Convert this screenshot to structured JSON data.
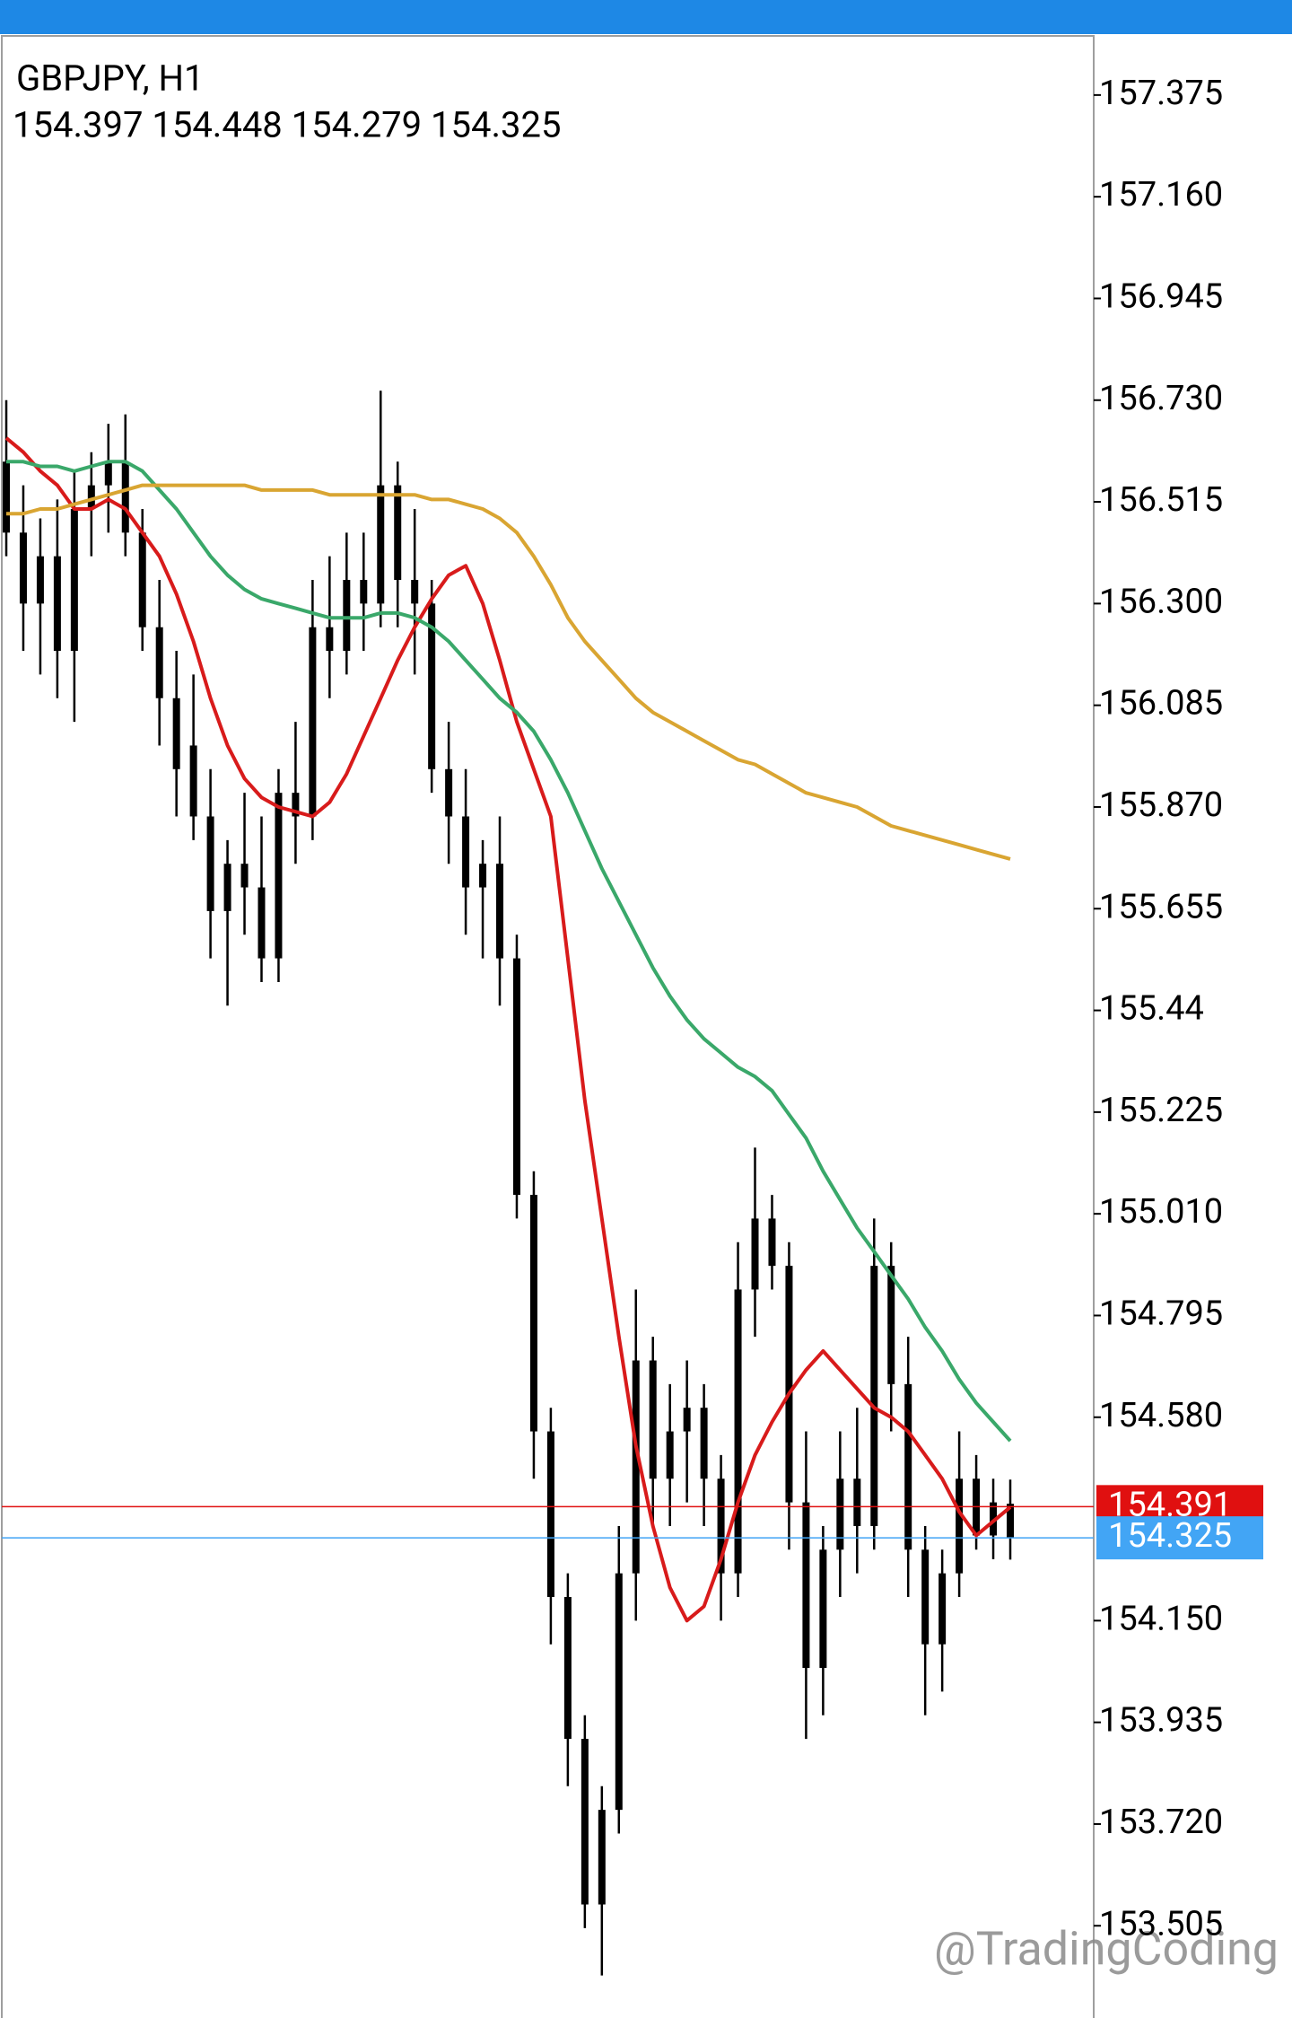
{
  "chart_data": {
    "type": "candlestick",
    "title": "GBPJPY, H1",
    "subtitle": "154.397 154.448 154.279 154.325",
    "watermark": "@TradingCoding",
    "candle_color": "#000000",
    "open": [
      156.6,
      156.45,
      156.3,
      156.4,
      156.2,
      156.5,
      156.55,
      156.6,
      156.45,
      156.25,
      156.1,
      156.0,
      155.85,
      155.65,
      155.75,
      155.7,
      155.55,
      155.9,
      155.85,
      156.25,
      156.2,
      156.35,
      156.3,
      156.55,
      156.35,
      156.3,
      155.95,
      155.85,
      155.7,
      155.75,
      155.55,
      155.05,
      154.55,
      154.2,
      153.9,
      153.55,
      153.75,
      154.25,
      154.7,
      154.45,
      154.55,
      154.6,
      154.45,
      154.25,
      154.85,
      155.0,
      154.9,
      154.4,
      154.05,
      154.3,
      154.45,
      154.35,
      154.9,
      154.65,
      154.3,
      154.1,
      154.25,
      154.45,
      154.33,
      154.397
    ],
    "high": [
      156.73,
      156.55,
      156.48,
      156.52,
      156.58,
      156.62,
      156.68,
      156.7,
      156.5,
      156.35,
      156.2,
      156.15,
      155.95,
      155.8,
      155.9,
      155.85,
      155.95,
      156.05,
      156.35,
      156.4,
      156.45,
      156.45,
      156.75,
      156.6,
      156.5,
      156.35,
      156.05,
      155.95,
      155.8,
      155.85,
      155.6,
      155.1,
      154.6,
      154.25,
      153.95,
      153.8,
      154.35,
      154.85,
      154.75,
      154.65,
      154.7,
      154.65,
      154.5,
      154.95,
      155.15,
      155.05,
      154.95,
      154.55,
      154.35,
      154.55,
      154.6,
      155.0,
      154.95,
      154.75,
      154.35,
      154.3,
      154.55,
      154.5,
      154.45,
      154.448
    ],
    "low": [
      156.4,
      156.2,
      156.15,
      156.1,
      156.05,
      156.4,
      156.45,
      156.4,
      156.2,
      156.0,
      155.85,
      155.8,
      155.55,
      155.45,
      155.6,
      155.5,
      155.5,
      155.75,
      155.8,
      156.1,
      156.15,
      156.2,
      156.25,
      156.25,
      156.15,
      155.9,
      155.75,
      155.6,
      155.55,
      155.45,
      155.0,
      154.45,
      154.1,
      153.8,
      153.5,
      153.4,
      153.7,
      154.15,
      154.35,
      154.35,
      154.4,
      154.35,
      154.15,
      154.2,
      154.75,
      154.85,
      154.3,
      153.9,
      153.95,
      154.2,
      154.25,
      154.3,
      154.55,
      154.2,
      153.95,
      154.0,
      154.2,
      154.3,
      154.28,
      154.279
    ],
    "close": [
      156.45,
      156.3,
      156.4,
      156.2,
      156.5,
      156.55,
      156.6,
      156.45,
      156.25,
      156.1,
      155.95,
      155.85,
      155.65,
      155.75,
      155.7,
      155.55,
      155.9,
      155.85,
      156.25,
      156.2,
      156.35,
      156.3,
      156.55,
      156.35,
      156.3,
      155.95,
      155.85,
      155.7,
      155.75,
      155.55,
      155.05,
      154.55,
      154.2,
      153.9,
      153.55,
      153.75,
      154.25,
      154.7,
      154.45,
      154.55,
      154.6,
      154.45,
      154.25,
      154.85,
      155.0,
      154.9,
      154.4,
      154.05,
      154.3,
      154.45,
      154.35,
      154.9,
      154.65,
      154.3,
      154.1,
      154.25,
      154.45,
      154.33,
      154.4,
      154.325
    ],
    "lines": [
      {
        "color": "#d81b1b",
        "values": [
          156.65,
          156.62,
          156.58,
          156.55,
          156.5,
          156.5,
          156.52,
          156.5,
          156.45,
          156.4,
          156.32,
          156.22,
          156.1,
          156.0,
          155.93,
          155.89,
          155.87,
          155.86,
          155.85,
          155.88,
          155.94,
          156.02,
          156.1,
          156.18,
          156.25,
          156.31,
          156.36,
          156.38,
          156.3,
          156.18,
          156.05,
          155.95,
          155.85,
          155.55,
          155.25,
          155.0,
          154.75,
          154.52,
          154.35,
          154.22,
          154.15,
          154.18,
          154.28,
          154.4,
          154.5,
          154.57,
          154.63,
          154.68,
          154.72,
          154.68,
          154.64,
          154.6,
          154.58,
          154.55,
          154.5,
          154.45,
          154.38,
          154.33,
          154.36,
          154.39
        ]
      },
      {
        "color": "#3aa86a",
        "values": [
          156.6,
          156.6,
          156.59,
          156.59,
          156.58,
          156.59,
          156.6,
          156.6,
          156.58,
          156.54,
          156.5,
          156.45,
          156.4,
          156.36,
          156.33,
          156.31,
          156.3,
          156.29,
          156.28,
          156.27,
          156.27,
          156.27,
          156.28,
          156.28,
          156.27,
          156.25,
          156.22,
          156.18,
          156.14,
          156.1,
          156.07,
          156.03,
          155.97,
          155.9,
          155.82,
          155.74,
          155.67,
          155.6,
          155.53,
          155.47,
          155.42,
          155.38,
          155.35,
          155.32,
          155.3,
          155.27,
          155.22,
          155.17,
          155.1,
          155.04,
          154.98,
          154.93,
          154.88,
          154.83,
          154.77,
          154.72,
          154.66,
          154.61,
          154.57,
          154.53
        ]
      },
      {
        "color": "#d9a532",
        "values": [
          156.49,
          156.49,
          156.5,
          156.5,
          156.51,
          156.52,
          156.53,
          156.54,
          156.55,
          156.55,
          156.55,
          156.55,
          156.55,
          156.55,
          156.55,
          156.54,
          156.54,
          156.54,
          156.54,
          156.53,
          156.53,
          156.53,
          156.53,
          156.53,
          156.53,
          156.52,
          156.52,
          156.51,
          156.5,
          156.48,
          156.45,
          156.4,
          156.34,
          156.27,
          156.22,
          156.18,
          156.14,
          156.1,
          156.07,
          156.05,
          156.03,
          156.01,
          155.99,
          155.97,
          155.96,
          155.94,
          155.92,
          155.9,
          155.89,
          155.88,
          155.87,
          155.85,
          155.83,
          155.82,
          155.81,
          155.8,
          155.79,
          155.78,
          155.77,
          155.76
        ]
      }
    ],
    "price_lines": [
      {
        "value": 154.391,
        "color": "#e01010"
      },
      {
        "value": 154.325,
        "color": "#42a5f5"
      }
    ],
    "ylim": [
      153.31,
      157.5
    ],
    "yticks": [
      157.375,
      {
        "value": 157.16,
        "label": "157.160"
      },
      156.945,
      {
        "value": 156.73,
        "label": "156.730"
      },
      156.515,
      {
        "value": 156.3,
        "label": "156.300"
      },
      156.085,
      {
        "value": 155.87,
        "label": "155.870"
      },
      155.655,
      155.44,
      155.225,
      {
        "value": 155.01,
        "label": "155.010"
      },
      154.795,
      {
        "value": 154.58,
        "label": "154.580"
      },
      {
        "value": 154.15,
        "label": "154.150"
      },
      153.935,
      {
        "value": 153.72,
        "label": "153.720"
      },
      153.505
    ]
  }
}
